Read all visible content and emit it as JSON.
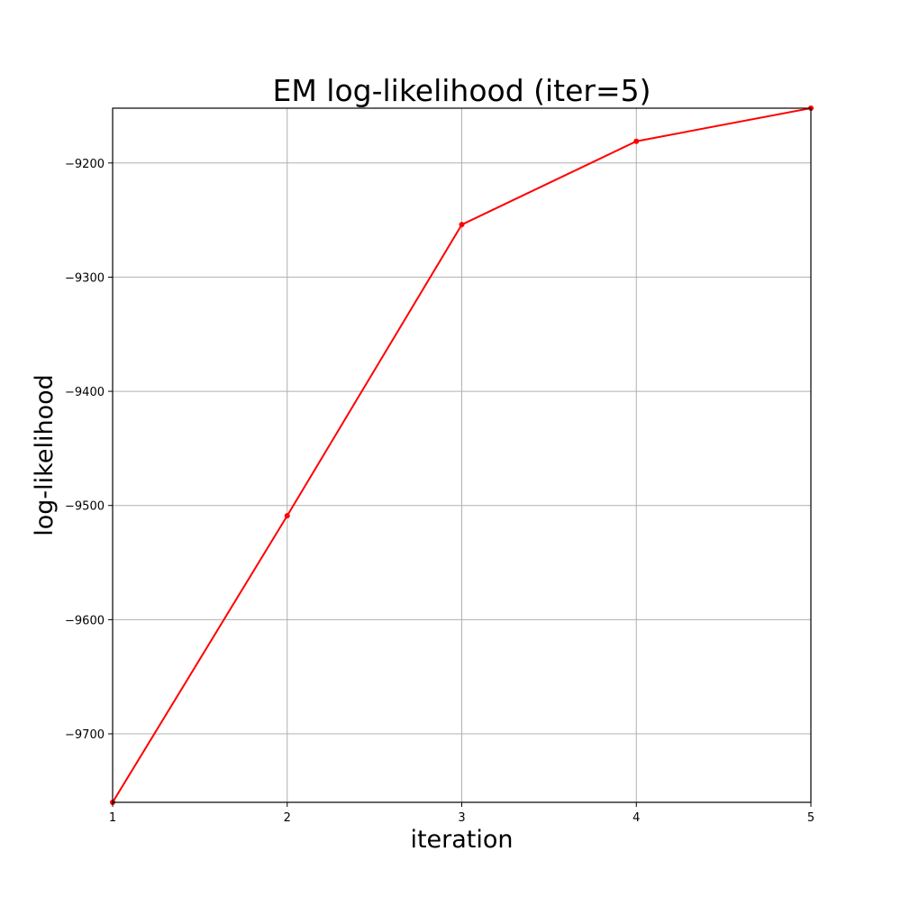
{
  "chart_data": {
    "type": "line",
    "title": "EM log-likelihood (iter=5)",
    "xlabel": "iteration",
    "ylabel": "log-likelihood",
    "xlim": [
      1,
      5
    ],
    "ylim": [
      -9760,
      -9152
    ],
    "xticks": [
      1,
      2,
      3,
      4,
      5
    ],
    "xtick_labels": [
      "1",
      "2",
      "3",
      "4",
      "5"
    ],
    "yticks": [
      -9700,
      -9600,
      -9500,
      -9400,
      -9300,
      -9200
    ],
    "ytick_labels": [
      "−9700",
      "−9600",
      "−9500",
      "−9400",
      "−9300",
      "−9200"
    ],
    "grid": true,
    "series": [
      {
        "x": [
          1,
          2,
          3,
          4,
          5
        ],
        "y": [
          -9760,
          -9509,
          -9254,
          -9181,
          -9152
        ],
        "color": "#ff0000",
        "marker": "dot"
      }
    ]
  }
}
